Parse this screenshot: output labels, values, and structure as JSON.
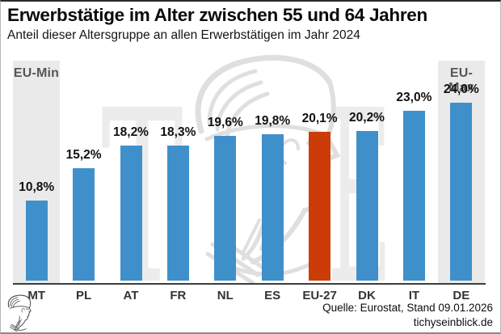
{
  "header": {
    "title": "Erwerbstätige im Alter zwischen 55 und 64 Jahren",
    "subtitle": "Anteil dieser Altersgruppe an allen Erwerbstätigen im Jahr 2024"
  },
  "chart_data": {
    "type": "bar",
    "categories": [
      "MT",
      "PL",
      "AT",
      "FR",
      "NL",
      "ES",
      "EU-27",
      "DK",
      "IT",
      "DE"
    ],
    "values": [
      10.8,
      15.2,
      18.2,
      18.3,
      19.6,
      19.8,
      20.1,
      20.2,
      23.0,
      24.0
    ],
    "value_labels": [
      "10,8%",
      "15,2%",
      "18,2%",
      "18,3%",
      "19,6%",
      "19,8%",
      "20,1%",
      "20,2%",
      "23,0%",
      "24,0%"
    ],
    "title": "Erwerbstätige im Alter zwischen 55 und 64 Jahren",
    "subtitle": "Anteil dieser Altersgruppe an allen Erwerbstätigen im Jahr 2024",
    "xlabel": "",
    "ylabel": "",
    "ylim": [
      0,
      30
    ],
    "grid": false,
    "legend": false,
    "highlight_category": "EU-27",
    "bar_color": "#3f90ca",
    "highlight_color": "#cc3c08",
    "min_column_label": "EU-Min",
    "max_column_label": "EU-Max",
    "min_max_column_bg": "#eaeaea"
  },
  "watermark": {
    "letters": [
      "T",
      "E"
    ],
    "icon": "hermes-head-with-winged-helmet",
    "letter_color": "#ececec",
    "sketch_color": "#dfdfdf"
  },
  "footer": {
    "source": "Quelle: Eurostat, Stand 09.01.2026",
    "site": "tichyseinblick.de",
    "logo_icon": "hermes-head-with-winged-helmet"
  }
}
